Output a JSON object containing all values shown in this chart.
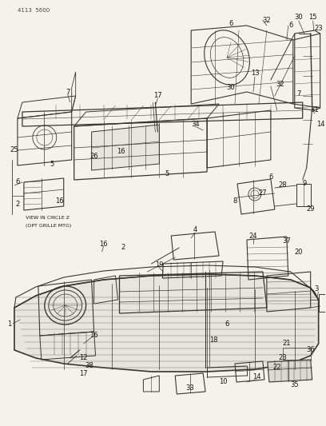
{
  "page_code": "4113  5600",
  "bg": "#f0ede8",
  "lc": "#3a3530",
  "tc": "#1a1510",
  "fig_width": 4.08,
  "fig_height": 5.33,
  "dpi": 100,
  "view_circle_text": "VIEW IN CIRCLE Z\n(OPT GRILLE MTG)"
}
